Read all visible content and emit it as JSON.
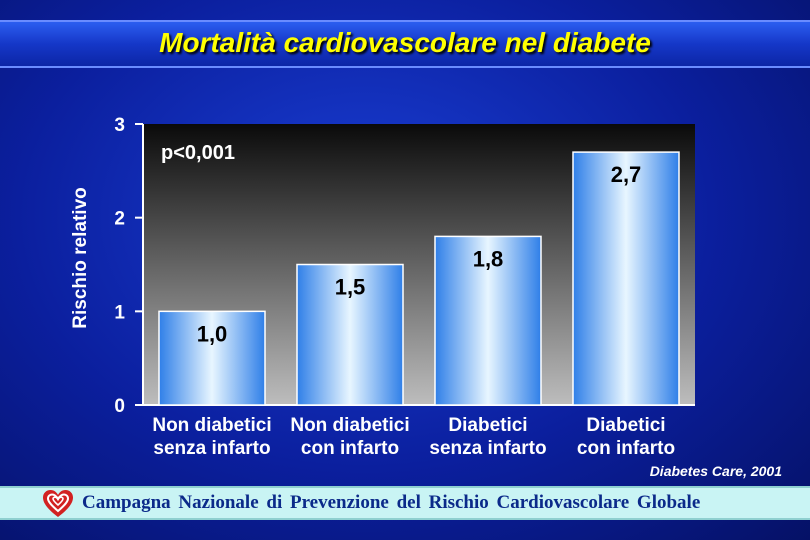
{
  "title": "Mortalità cardiovascolare nel diabete",
  "source": "Diabetes Care, 2001",
  "footer": {
    "text": "Campagna Nazionale di Prevenzione del Rischio Cardiovascolare Globale",
    "logo_icon": "heart-logo-icon"
  },
  "chart_data": {
    "type": "bar",
    "ylabel": "Rischio relativo",
    "xlabel": "",
    "ylim": [
      0,
      3
    ],
    "yticks": [
      "0",
      "1",
      "2",
      "3"
    ],
    "annotation": "p<0,001",
    "categories": [
      [
        "Non diabetici",
        "senza infarto"
      ],
      [
        "Non diabetici",
        "con infarto"
      ],
      [
        "Diabetici",
        "senza infarto"
      ],
      [
        "Diabetici",
        "con infarto"
      ]
    ],
    "values": [
      1.0,
      1.5,
      1.8,
      2.7
    ],
    "labels": [
      "1,0",
      "1,5",
      "1,8",
      "2,7"
    ],
    "grid": false,
    "colors": {
      "bar_edge": "#2f7fe8",
      "bar_center": "#e8f6ff",
      "plot_top": "#0a0a0a",
      "plot_bottom": "#bdbdbd"
    }
  }
}
